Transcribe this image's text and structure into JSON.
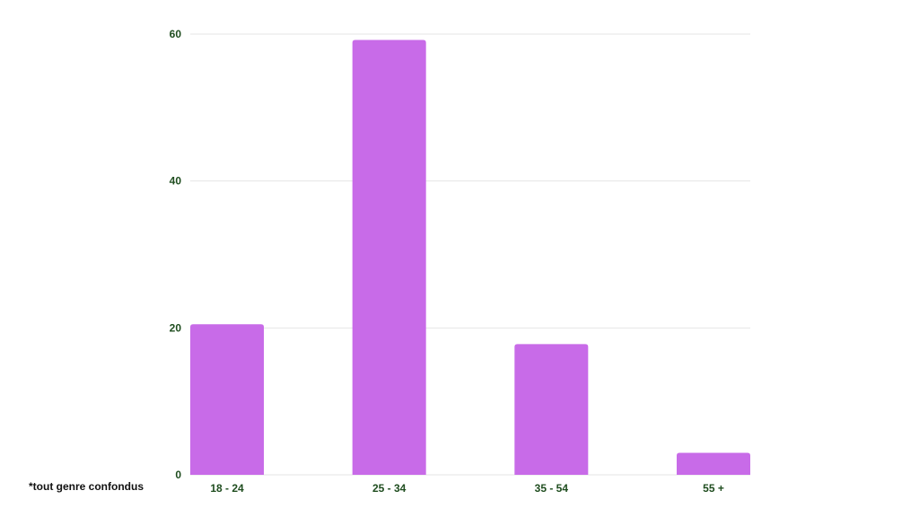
{
  "chart_data": {
    "type": "bar",
    "categories": [
      "18 - 24",
      "25 - 34",
      "35 - 54",
      "55 +"
    ],
    "values": [
      20.5,
      59.2,
      17.8,
      3.0
    ],
    "ylim": [
      0,
      60
    ],
    "yticks": [
      0,
      20,
      40,
      60
    ],
    "grid": true,
    "colors": {
      "bar": "#c86be8",
      "label": "#1f4d1f",
      "grid": "#e6e6e6"
    }
  },
  "footnote": "*tout genre confondus"
}
